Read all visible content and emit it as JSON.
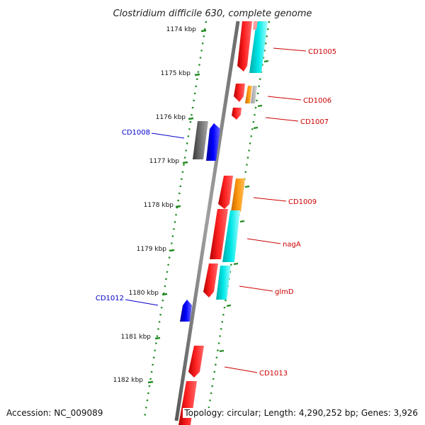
{
  "title": "Clostridium difficile 630, complete genome",
  "accession": "Accession: NC_009089",
  "topology": "Topology: circular; Length: 4,290,252 bp; Genes: 3,926",
  "ticks": [
    "1174 kbp",
    "1175 kbp",
    "1176 kbp",
    "1177 kbp",
    "1178 kbp",
    "1179 kbp",
    "1180 kbp",
    "1181 kbp",
    "1182 kbp"
  ],
  "labels": [
    {
      "text": "CD1005",
      "color": "#cc0000"
    },
    {
      "text": "CD1006",
      "color": "#cc0000"
    },
    {
      "text": "CD1007",
      "color": "#cc0000"
    },
    {
      "text": "CD1008",
      "color": "#0000cc"
    },
    {
      "text": "CD1009",
      "color": "#cc0000"
    },
    {
      "text": "nagA",
      "color": "#cc0000"
    },
    {
      "text": "glmD",
      "color": "#cc0000"
    },
    {
      "text": "CD1012",
      "color": "#0000cc"
    },
    {
      "text": "CD1013",
      "color": "#cc0000"
    }
  ],
  "colors": {
    "cds_forward": "#ff0000",
    "cds_reverse": "#0000ff",
    "feature_cyan": "#00e5e5",
    "feature_orange": "#ff8c00",
    "feature_gray": "#666666",
    "dotted_track": "#228b22",
    "backbone": "#888888"
  }
}
